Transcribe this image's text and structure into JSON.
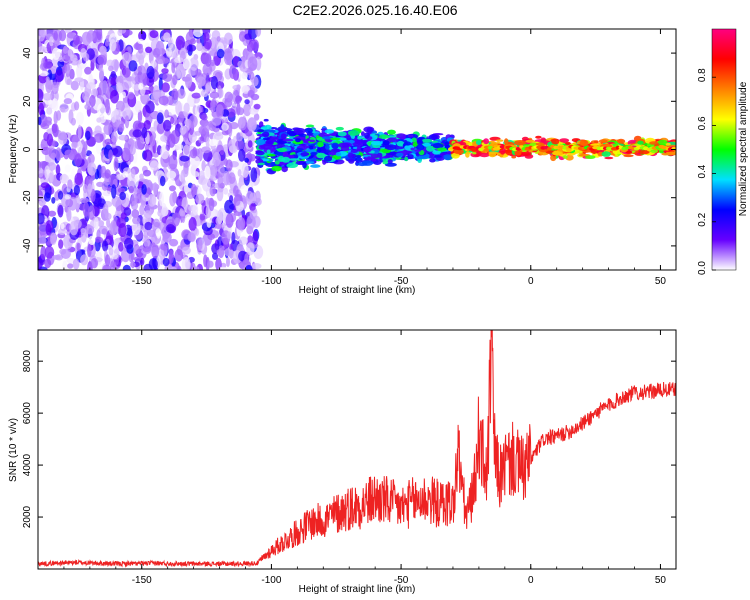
{
  "title": "C2E2.2026.025.16.40.E06",
  "chart_data": [
    {
      "type": "heatmap",
      "title": "C2E2.2026.025.16.40.E06",
      "xlabel": "Height of straight line (km)",
      "ylabel": "Frequency (Hz)",
      "xlim": [
        -190,
        56
      ],
      "ylim": [
        -50,
        50
      ],
      "xticks": [
        -150,
        -100,
        -50,
        0,
        50
      ],
      "yticks": [
        -40,
        -20,
        0,
        20,
        40
      ],
      "description_regions": [
        {
          "x_range": [
            -190,
            -105
          ],
          "y_range": [
            -50,
            50
          ],
          "amplitude_range": [
            0.0,
            0.25
          ]
        },
        {
          "x_range": [
            -105,
            -30
          ],
          "y_range": [
            -8,
            8
          ],
          "amplitude_range": [
            0.15,
            0.5
          ]
        },
        {
          "x_range": [
            -30,
            56
          ],
          "y_range": [
            -3,
            3
          ],
          "amplitude_range": [
            0.4,
            1.0
          ]
        }
      ],
      "colorbar": {
        "label": "Normalized spectral amplitude",
        "min": 0.0,
        "max": 1.0,
        "ticks": [
          "0.0",
          "0.2",
          "0.4",
          "0.6",
          "0.8"
        ],
        "colors": [
          "#ffffff",
          "#6600ff",
          "#0000ff",
          "#00e0ff",
          "#00ff00",
          "#ffff00",
          "#ff8000",
          "#ff0000",
          "#ff0080"
        ]
      }
    },
    {
      "type": "line",
      "xlabel": "Height of straight line (km)",
      "ylabel": "SNR (10 * v/v)",
      "xlim": [
        -190,
        56
      ],
      "ylim": [
        0,
        9200
      ],
      "xticks": [
        -150,
        -100,
        -50,
        0,
        50
      ],
      "yticks": [
        2000,
        4000,
        6000,
        8000
      ],
      "series": [
        {
          "name": "SNR",
          "color": "#ee2222",
          "x": [
            -190,
            -175,
            -160,
            -145,
            -130,
            -115,
            -105,
            -100,
            -95,
            -90,
            -85,
            -80,
            -75,
            -70,
            -65,
            -60,
            -55,
            -50,
            -45,
            -40,
            -35,
            -30,
            -28,
            -25,
            -22,
            -20,
            -17,
            -15,
            -14,
            -12,
            -10,
            -7,
            -5,
            -3,
            0,
            5,
            10,
            15,
            20,
            25,
            30,
            35,
            40,
            45,
            50,
            56
          ],
          "values": [
            200,
            250,
            200,
            220,
            200,
            200,
            230,
            600,
            900,
            1200,
            1500,
            1600,
            1800,
            2000,
            2100,
            2300,
            2200,
            2000,
            2200,
            2300,
            2100,
            2200,
            4500,
            2000,
            3000,
            5200,
            3500,
            8600,
            4500,
            3500,
            4000,
            4200,
            4000,
            3800,
            4200,
            5000,
            5100,
            5300,
            5600,
            6000,
            6300,
            6600,
            6800,
            6800,
            6900,
            6900
          ]
        }
      ]
    }
  ]
}
